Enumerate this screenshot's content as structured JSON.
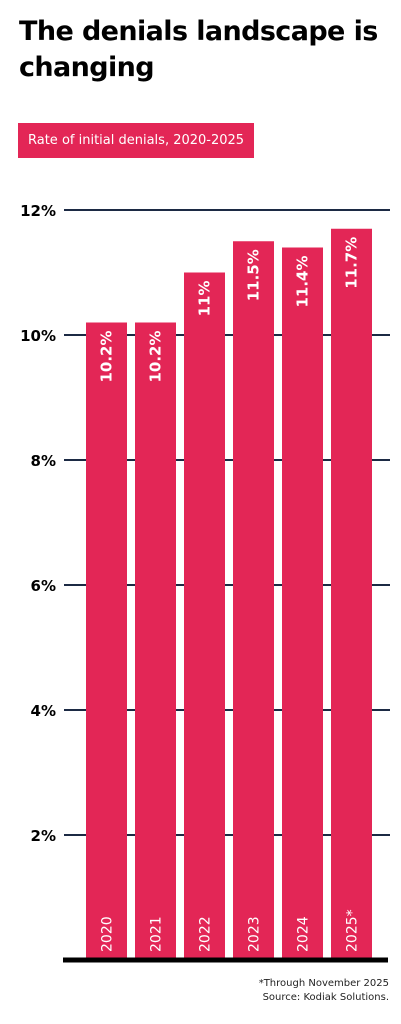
{
  "header": {
    "title": "The denials landscape is changing",
    "subtitle": "Rate of initial denials, 2020-2025"
  },
  "footnotes": {
    "note": "*Through November 2025",
    "source": "Source: Kodiak Solutions."
  },
  "colors": {
    "bar": "#e32656",
    "grid": "#1c2a44",
    "baseline": "#000000",
    "text": "#000000",
    "bar_text": "#ffffff"
  },
  "chart_data": {
    "type": "bar",
    "title": "",
    "xlabel": "",
    "ylabel": "",
    "categories": [
      "2020",
      "2021",
      "2022",
      "2023",
      "2024",
      "2025*"
    ],
    "values": [
      10.2,
      10.2,
      11.0,
      11.5,
      11.4,
      11.7
    ],
    "data_labels": [
      "10.2%",
      "10.2%",
      "11%",
      "11.5%",
      "11.4%",
      "11.7%"
    ],
    "ylim": [
      0,
      12
    ],
    "y_ticks": [
      2,
      4,
      6,
      8,
      10,
      12
    ],
    "y_tick_labels": [
      "2%",
      "4%",
      "6%",
      "8%",
      "10%",
      "12%"
    ],
    "grid": true,
    "legend": "none"
  }
}
